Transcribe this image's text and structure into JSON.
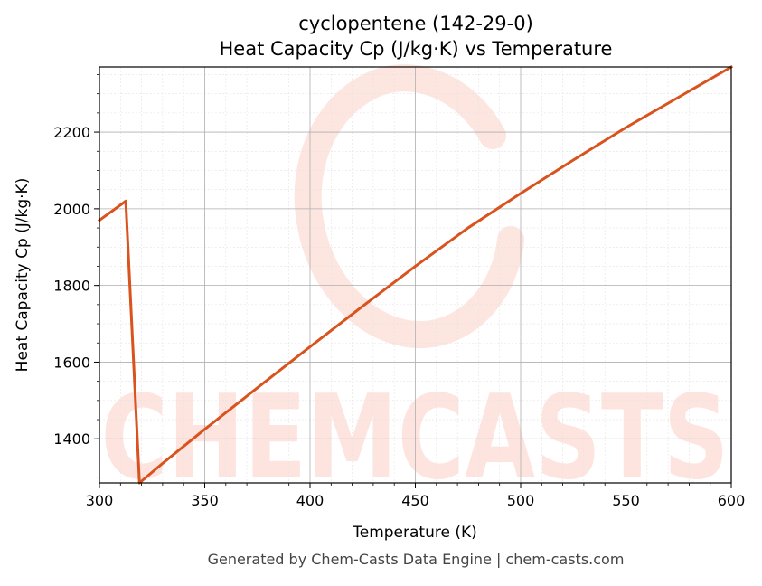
{
  "chart_data": {
    "type": "line",
    "title": "cyclopentene (142-29-0)",
    "subtitle": "Heat Capacity Cp (J/kg·K) vs Temperature",
    "xlabel": "Temperature (K)",
    "ylabel": "Heat Capacity Cp (J/kg·K)",
    "xlim": [
      300,
      600
    ],
    "ylim": [
      1285,
      2370
    ],
    "xticks": [
      300,
      350,
      400,
      450,
      500,
      550,
      600
    ],
    "yticks": [
      1400,
      1600,
      1800,
      2000,
      2200
    ],
    "grid": true,
    "legend": "none",
    "series": [
      {
        "color": "#d9531e",
        "x": [
          300,
          312.5,
          319,
          330,
          350,
          375,
          400,
          425,
          450,
          475,
          500,
          525,
          550,
          575,
          600
        ],
        "y": [
          1970,
          2020,
          1285,
          1336,
          1425,
          1533,
          1640,
          1746,
          1850,
          1950,
          2040,
          2127,
          2212,
          2291,
          2370
        ]
      }
    ]
  },
  "footer": "Generated by Chem-Casts Data Engine | chem-casts.com",
  "watermark": {
    "text": "CHEMCASTS",
    "color": "#fde0da"
  }
}
